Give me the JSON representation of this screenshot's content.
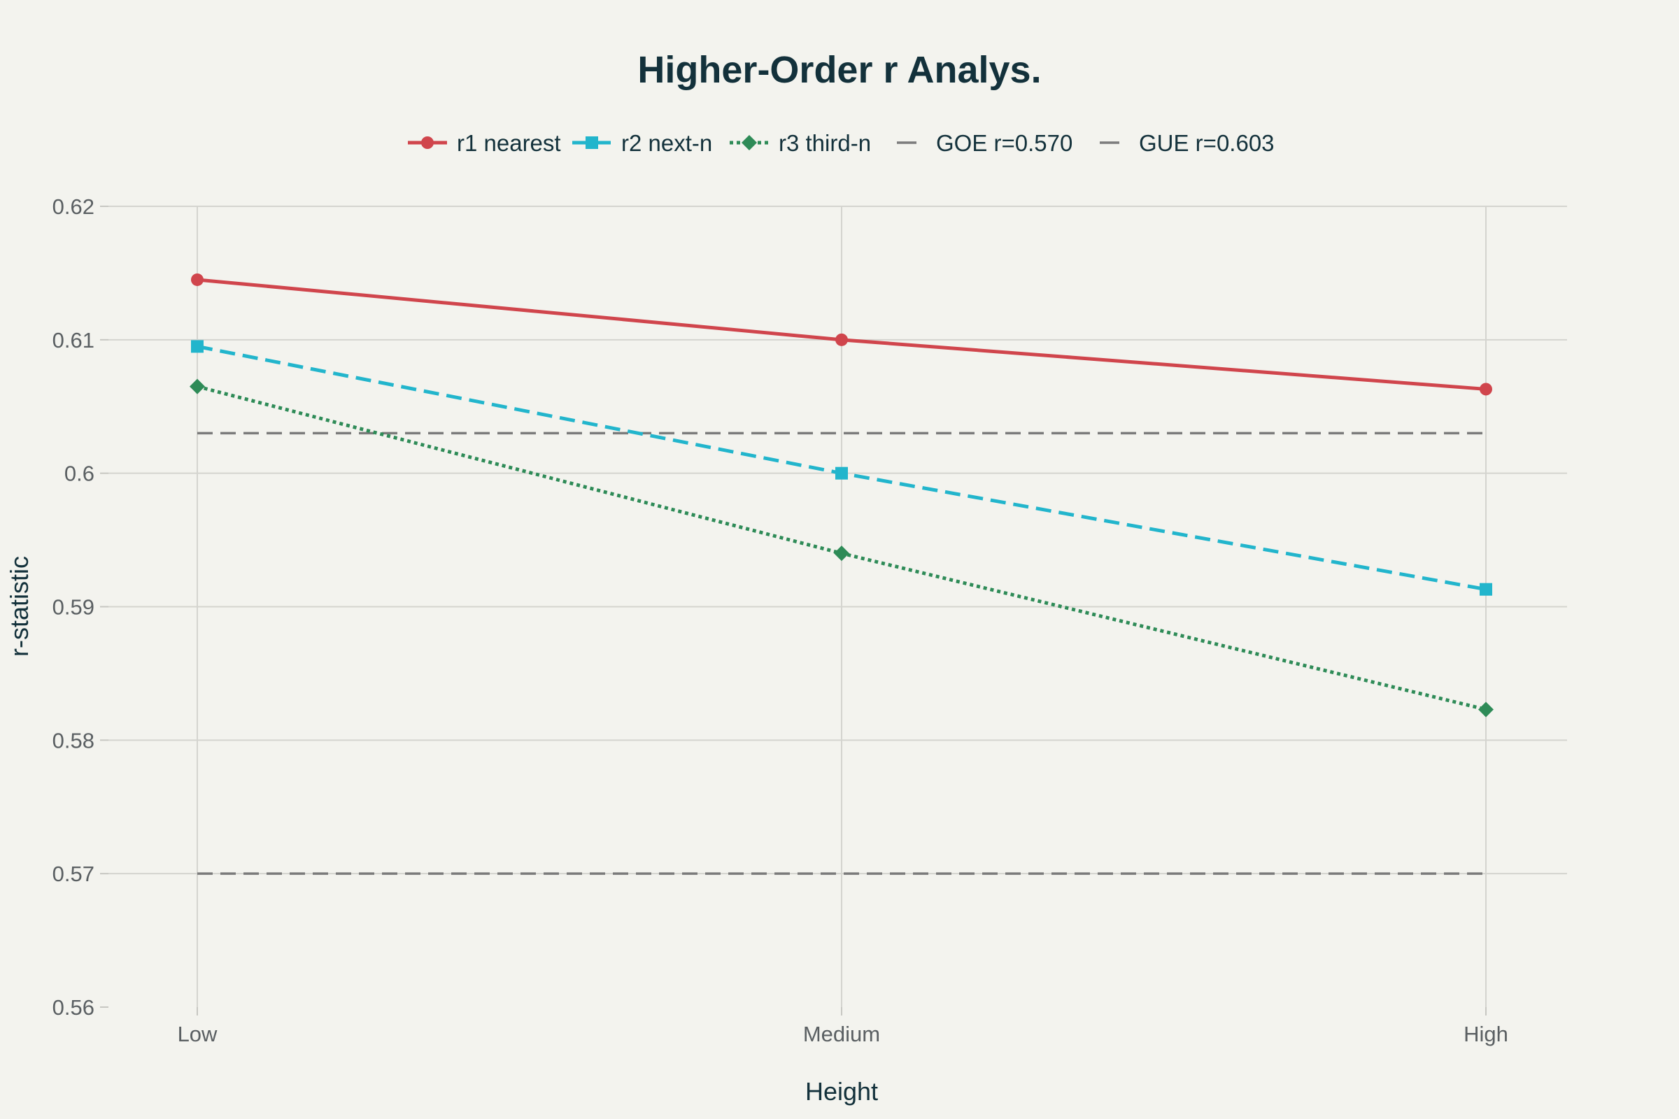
{
  "chart_data": {
    "type": "line",
    "title": "Higher-Order r Analys.",
    "xlabel": "Height",
    "ylabel": "r-statistic",
    "categories": [
      "Low",
      "Medium",
      "High"
    ],
    "ylim": [
      0.56,
      0.62
    ],
    "yticks": [
      0.56,
      0.57,
      0.58,
      0.59,
      0.6,
      0.61,
      0.62
    ],
    "ytick_labels": [
      "0.56",
      "0.57",
      "0.58",
      "0.59",
      "0.6",
      "0.61",
      "0.62"
    ],
    "grid": true,
    "legend_position": "top-center",
    "series": [
      {
        "name": "r1 nearest",
        "values": [
          0.6145,
          0.61,
          0.6063
        ],
        "color": "#d0454c",
        "dash": "solid",
        "marker": "circle"
      },
      {
        "name": "r2 next-n",
        "values": [
          0.6095,
          0.6,
          0.5913
        ],
        "color": "#22b5cc",
        "dash": "dash",
        "marker": "square"
      },
      {
        "name": "r3 third-n",
        "values": [
          0.6065,
          0.594,
          0.5823
        ],
        "color": "#2e8b57",
        "dash": "dot",
        "marker": "diamond"
      }
    ],
    "reference_lines": [
      {
        "name": "GOE r=0.570",
        "y": 0.57,
        "color": "#7b7b7b",
        "dash": "dash"
      },
      {
        "name": "GUE r=0.603",
        "y": 0.603,
        "color": "#7b7b7b",
        "dash": "dash"
      }
    ]
  }
}
